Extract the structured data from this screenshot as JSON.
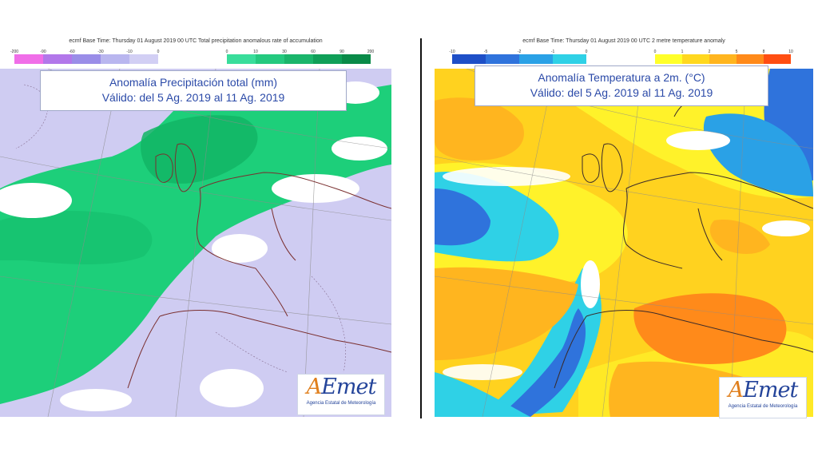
{
  "precip_panel": {
    "header": "ecmf Base Time: Thursday 01 August 2019 00 UTC Total precipitation anomalous rate of accumulation",
    "title": "Anomalía Precipitación total (mm)",
    "valid": "Válido: del 5 Ag. 2019 al 11 Ag. 2019",
    "legend_ticks_negative": [
      "-200",
      "-90",
      "-60",
      "-30",
      "-10",
      "0"
    ],
    "legend_ticks_positive": [
      "0",
      "10",
      "30",
      "60",
      "90",
      "200"
    ],
    "legend_colors_negative": [
      "#f06ee8",
      "#b277ea",
      "#9a8de8",
      "#b9b6ef",
      "#d2cff4"
    ],
    "legend_colors_positive": [
      "#39dd9b",
      "#24c97f",
      "#1ab56b",
      "#0f9f58",
      "#098a48"
    ]
  },
  "temp_panel": {
    "header": "ecmf Base Time: Thursday 01 August 2019 00 UTC 2 metre temperature anomaly",
    "title": "Anomalía Temperatura a 2m. (°C)",
    "valid": "Válido: del 5 Ag. 2019 al 11 Ag. 2019",
    "legend_ticks_negative": [
      "-10",
      "-5",
      "-2",
      "-1",
      "0"
    ],
    "legend_ticks_positive": [
      "0",
      "1",
      "2",
      "5",
      "8",
      "10"
    ],
    "legend_colors_negative": [
      "#1e4fc7",
      "#2f73dc",
      "#2aa1e6",
      "#2fd1e6"
    ],
    "legend_colors_positive": [
      "#ffff2a",
      "#ffd81f",
      "#ffb51f",
      "#ff8a1a",
      "#ff4e12"
    ]
  },
  "logo": {
    "brand": "AEmet",
    "brand_first": "A",
    "brand_rest": "Emet",
    "subtitle": "Agencia Estatal de Meteorología"
  }
}
